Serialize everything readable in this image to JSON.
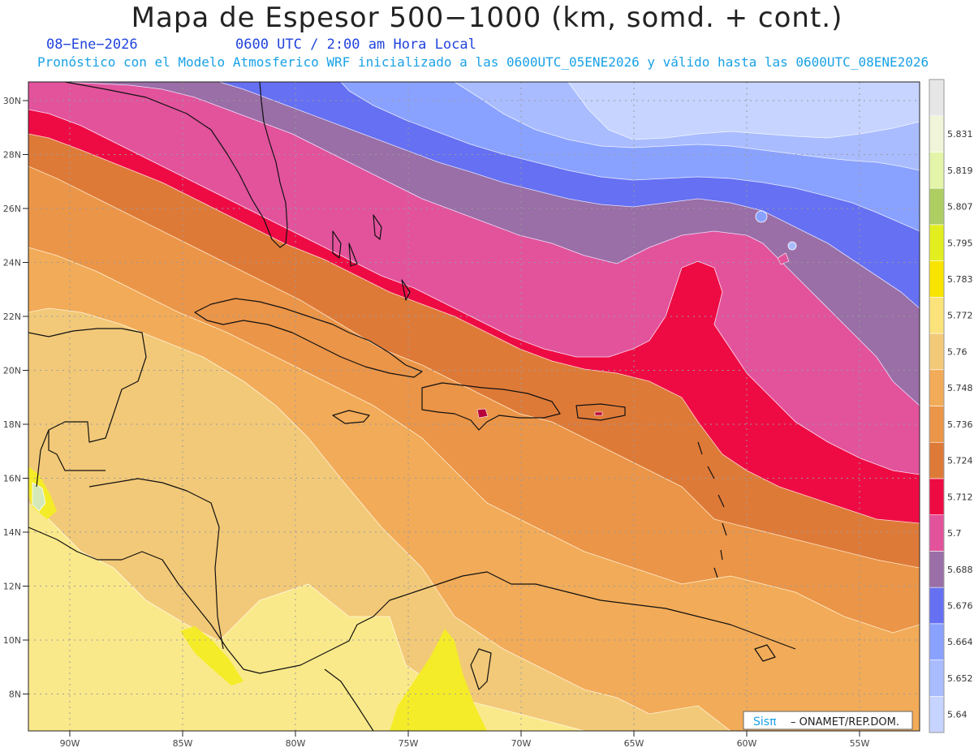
{
  "title": "Mapa de Espesor 500−1000 (km, somd. + cont.)",
  "date_line": "08−Ene−2026",
  "time_line": "0600 UTC / 2:00 am Hora Local",
  "description": "Pronóstico con el Modelo Atmosferico WRF inicializado a las 0600UTC_05ENE2026 y válido hasta las  0600UTC_08ENE2026",
  "credit": {
    "prefix": "Sisπ",
    "suffix": "– ONAMET/REP.DOM."
  },
  "map": {
    "lat_labels": [
      "30N",
      "28N",
      "26N",
      "24N",
      "22N",
      "20N",
      "18N",
      "16N",
      "14N",
      "12N",
      "10N",
      "8N"
    ],
    "lon_labels": [
      "90W",
      "85W",
      "80W",
      "75W",
      "70W",
      "65W",
      "60W",
      "55W"
    ],
    "palette": [
      "#f2f6d0",
      "#c8daff",
      "#a4bcff",
      "#8aa2ff",
      "#6670f2",
      "#9a6ea6",
      "#e2539c",
      "#ee0b44",
      "#de7a38",
      "#eb9548",
      "#f2ab58",
      "#f2c978",
      "#fbe27a",
      "#fae98a",
      "#f4ec28",
      "#efe900"
    ]
  },
  "colorbar": {
    "labels": [
      "5.64",
      "5.652",
      "5.664",
      "5.676",
      "5.688",
      "5.7",
      "5.712",
      "5.724",
      "5.736",
      "5.748",
      "5.76",
      "5.772",
      "5.783",
      "5.795",
      "5.807",
      "5.819",
      "5.831"
    ],
    "colors": [
      "#c6d4ff",
      "#a9bcff",
      "#8aa2ff",
      "#6670f2",
      "#9a6ea6",
      "#e2539c",
      "#ee0b44",
      "#de7a38",
      "#eb9548",
      "#f2ab58",
      "#f2c978",
      "#fbe27a",
      "#f9e400",
      "#e3ee20",
      "#aece63",
      "#e4f4a8",
      "#f0f4d8",
      "#e6e6e6"
    ]
  }
}
